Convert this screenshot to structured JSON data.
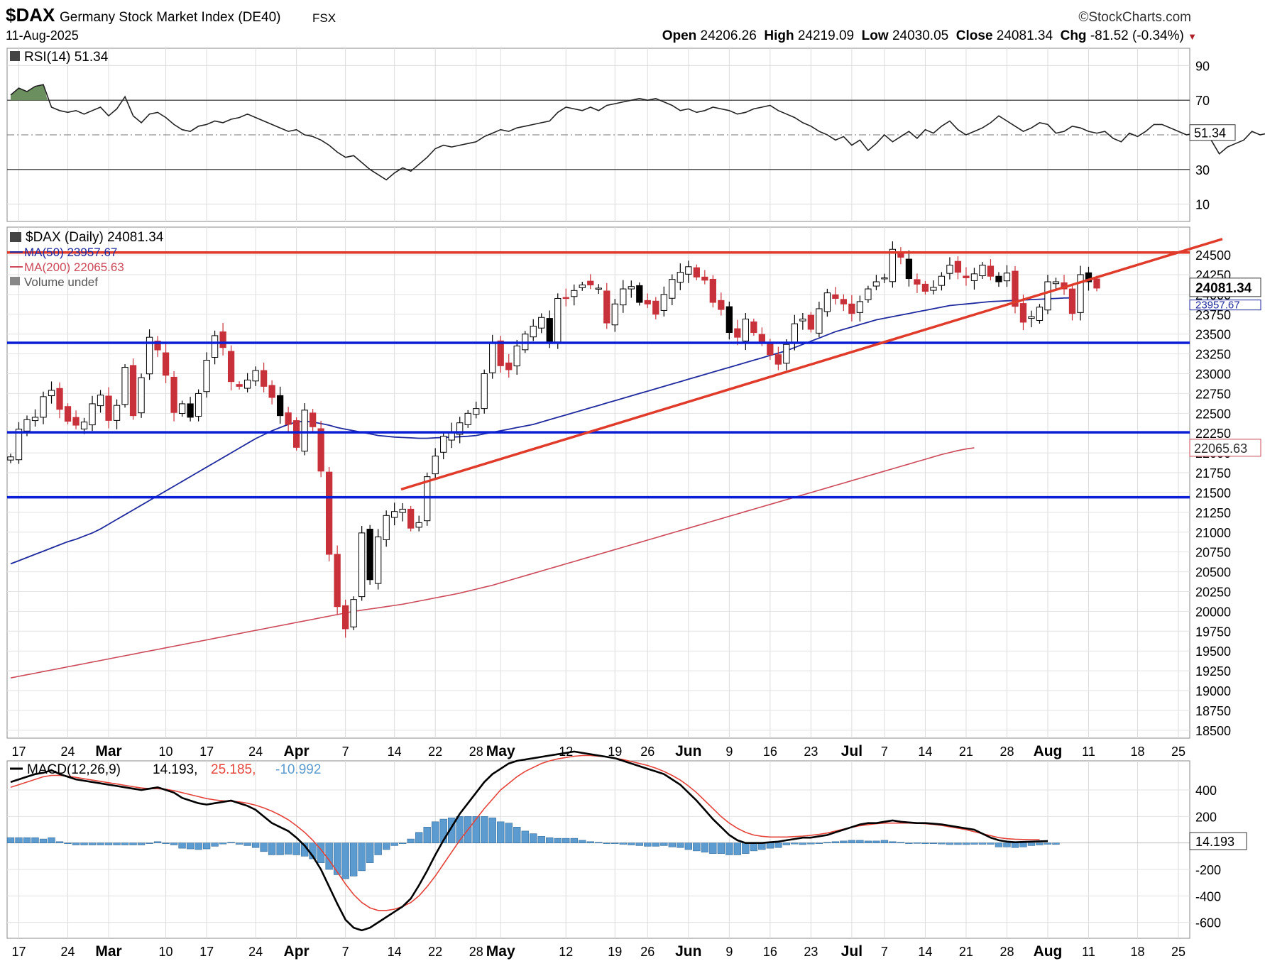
{
  "header": {
    "symbol": "$DAX",
    "name": "Germany Stock Market Index (DE40)",
    "exchange": "FSX",
    "date": "11-Aug-2025",
    "source": "©StockCharts.com",
    "open_label": "Open",
    "open": "24206.26",
    "high_label": "High",
    "high": "24219.09",
    "low_label": "Low",
    "low": "24030.05",
    "close_label": "Close",
    "close": "24081.34",
    "chg_label": "Chg",
    "chg": "-81.52 (-0.34%)",
    "chg_arrow": "▼"
  },
  "colors": {
    "up_candle": "#ffffff",
    "down_candle": "#c8303a",
    "black_candle": "#000000",
    "ma50": "#1f2a9e",
    "ma200": "#cc4a5a",
    "support_line": "#0a1ed6",
    "trend_line": "#e03a2a",
    "macd_line": "#000000",
    "signal_line": "#e4443a",
    "histogram": "#5b9bd0",
    "rsi_fill": "#6b8f5e"
  },
  "chart_data": [
    {
      "type": "line",
      "panel": "rsi",
      "label": "RSI(14) 51.34",
      "current_value_label": "51.34",
      "yticks": [
        "90",
        "70",
        "30",
        "10"
      ],
      "ylim": [
        0,
        100
      ],
      "reference_levels": [
        70,
        50,
        30
      ],
      "series": [
        {
          "name": "RSI(14)",
          "values": [
            73,
            77,
            75,
            78,
            79,
            66,
            64,
            63,
            64,
            62,
            64,
            66,
            61,
            65,
            72,
            61,
            57,
            62,
            63,
            60,
            56,
            53,
            52,
            55,
            56,
            58,
            57,
            59,
            60,
            62,
            60,
            58,
            56,
            54,
            52,
            53,
            50,
            49,
            47,
            44,
            40,
            37,
            38,
            34,
            30,
            27,
            24,
            28,
            31,
            29,
            33,
            37,
            42,
            44,
            43,
            44,
            45,
            46,
            49,
            51,
            53,
            52,
            54,
            55,
            56,
            57,
            58,
            63,
            66,
            65,
            64,
            66,
            64,
            67,
            68,
            69,
            70,
            71,
            70,
            71,
            69,
            67,
            64,
            65,
            63,
            64,
            66,
            65,
            64,
            62,
            63,
            65,
            66,
            67,
            64,
            62,
            60,
            57,
            55,
            52,
            50,
            47,
            49,
            44,
            47,
            41,
            45,
            50,
            46,
            49,
            52,
            48,
            53,
            51,
            55,
            58,
            53,
            50,
            52,
            54,
            57,
            61,
            58,
            55,
            52,
            54,
            57,
            56,
            51,
            52,
            55,
            54,
            52,
            51,
            52,
            48,
            46,
            51,
            49,
            52,
            56,
            56,
            54,
            52,
            50,
            51,
            49,
            47,
            39,
            43,
            45,
            47,
            52,
            50,
            51
          ]
        }
      ]
    },
    {
      "type": "candlestick",
      "panel": "price",
      "label": "$DAX (Daily) 24081.34",
      "legend": [
        "MA(50) 23957.67",
        "MA(200) 22065.63",
        "Volume undef"
      ],
      "current_price_label": "24081.34",
      "ma50_label_partial": "23957.67",
      "ma200_label": "22065.63",
      "yticks": [
        "24500",
        "24250",
        "24000",
        "23750",
        "23500",
        "23250",
        "23000",
        "22750",
        "22500",
        "22250",
        "22000",
        "21750",
        "21500",
        "21250",
        "21000",
        "20750",
        "20500",
        "20250",
        "20000",
        "19750",
        "19500",
        "19250",
        "19000",
        "18750",
        "18500"
      ],
      "ylim": [
        18400,
        24850
      ],
      "xticks": [
        "17",
        "24",
        "Mar",
        "10",
        "17",
        "24",
        "Apr",
        "7",
        "14",
        "22",
        "28",
        "May",
        "12",
        "19",
        "26",
        "Jun",
        "9",
        "16",
        "23",
        "Jul",
        "7",
        "14",
        "21",
        "28",
        "Aug",
        "11",
        "18",
        "25"
      ],
      "horizontal_levels": [
        24530,
        23390,
        22260,
        21440
      ],
      "trend_line": {
        "from": [
          "2025-04-22",
          21540
        ],
        "to": [
          "2025-08-28",
          24650
        ]
      },
      "close": [
        21950,
        22300,
        22420,
        22450,
        22710,
        22790,
        22550,
        22400,
        22350,
        22390,
        22620,
        22730,
        22410,
        22600,
        23080,
        22470,
        22950,
        23460,
        23300,
        22980,
        22510,
        22620,
        22450,
        22750,
        23170,
        23480,
        23330,
        22900,
        22840,
        22920,
        23040,
        22840,
        22700,
        22470,
        22360,
        22070,
        22540,
        22330,
        21770,
        20720,
        20060,
        19780,
        20150,
        20990,
        20400,
        20940,
        21210,
        21260,
        21290,
        21050,
        21120,
        21700,
        21960,
        22210,
        22270,
        22380,
        22500,
        22560,
        23000,
        23390,
        23100,
        23050,
        23350,
        23500,
        23600,
        23710,
        23400,
        23950,
        23950,
        24050,
        24120,
        24120,
        24080,
        23640,
        23880,
        24070,
        24100,
        23900,
        23880,
        23750,
        24000,
        24190,
        24280,
        24350,
        24220,
        24180,
        23900,
        23810,
        23520,
        23460,
        23690,
        23520,
        23400,
        23240,
        23120,
        23370,
        23630,
        23690,
        23560,
        23820,
        24020,
        23950,
        23880,
        23760,
        23910,
        24070,
        24160,
        24210,
        24570,
        24470,
        24200,
        24130,
        24040,
        24090,
        24230,
        24370,
        24280,
        24210,
        24260,
        24370,
        24230,
        24160,
        24270,
        23850,
        23650,
        23720,
        23840,
        24160,
        24160,
        24070,
        23760,
        24250,
        24160,
        24080
      ],
      "ma50": [
        20600,
        20640,
        20680,
        20720,
        20760,
        20800,
        20840,
        20880,
        20910,
        20950,
        20990,
        21040,
        21100,
        21160,
        21220,
        21280,
        21340,
        21400,
        21460,
        21520,
        21580,
        21640,
        21700,
        21760,
        21820,
        21880,
        21940,
        22000,
        22060,
        22120,
        22180,
        22230,
        22280,
        22320,
        22360,
        22390,
        22400,
        22390,
        22370,
        22350,
        22320,
        22300,
        22280,
        22260,
        22240,
        22220,
        22210,
        22200,
        22195,
        22190,
        22185,
        22185,
        22190,
        22195,
        22200,
        22205,
        22210,
        22220,
        22240,
        22260,
        22280,
        22300,
        22320,
        22340,
        22360,
        22390,
        22420,
        22450,
        22480,
        22510,
        22540,
        22570,
        22600,
        22630,
        22660,
        22690,
        22720,
        22750,
        22780,
        22810,
        22840,
        22870,
        22900,
        22930,
        22960,
        22990,
        23020,
        23050,
        23080,
        23110,
        23140,
        23170,
        23200,
        23230,
        23260,
        23290,
        23330,
        23370,
        23410,
        23450,
        23490,
        23530,
        23560,
        23590,
        23620,
        23650,
        23680,
        23700,
        23720,
        23740,
        23760,
        23780,
        23800,
        23820,
        23840,
        23860,
        23870,
        23880,
        23890,
        23900,
        23910,
        23915,
        23920,
        23925,
        23930,
        23935,
        23940,
        23945,
        23950,
        23955,
        23957
      ],
      "ma200": [
        19160,
        19180,
        19200,
        19220,
        19240,
        19260,
        19280,
        19300,
        19320,
        19340,
        19360,
        19380,
        19400,
        19420,
        19440,
        19460,
        19480,
        19500,
        19520,
        19540,
        19560,
        19580,
        19600,
        19620,
        19640,
        19660,
        19680,
        19700,
        19720,
        19740,
        19760,
        19780,
        19800,
        19820,
        19840,
        19860,
        19880,
        19900,
        19920,
        19940,
        19960,
        19980,
        20000,
        20015,
        20030,
        20045,
        20060,
        20075,
        20090,
        20110,
        20130,
        20150,
        20170,
        20190,
        20210,
        20230,
        20255,
        20280,
        20305,
        20330,
        20360,
        20390,
        20420,
        20450,
        20480,
        20510,
        20540,
        20570,
        20600,
        20630,
        20660,
        20690,
        20720,
        20750,
        20780,
        20810,
        20840,
        20870,
        20900,
        20930,
        20960,
        20990,
        21020,
        21050,
        21080,
        21110,
        21140,
        21170,
        21200,
        21230,
        21260,
        21290,
        21320,
        21350,
        21380,
        21410,
        21440,
        21470,
        21500,
        21530,
        21560,
        21590,
        21620,
        21650,
        21680,
        21710,
        21740,
        21770,
        21800,
        21830,
        21860,
        21890,
        21920,
        21950,
        21980,
        22005,
        22030,
        22050,
        22065
      ]
    },
    {
      "type": "line",
      "panel": "macd",
      "label": "MACD(12,26,9)",
      "macd_value": "14.193",
      "signal_value": "25.185",
      "hist_value": "-10.992",
      "current_value_label": "14.193",
      "yticks": [
        "400",
        "200",
        "0",
        "-200",
        "-400",
        "-600"
      ],
      "ylim": [
        -720,
        620
      ],
      "series": [
        {
          "name": "MACD",
          "values": [
            460,
            480,
            500,
            520,
            530,
            550,
            520,
            500,
            480,
            470,
            460,
            450,
            440,
            430,
            420,
            410,
            400,
            410,
            420,
            400,
            380,
            340,
            320,
            300,
            290,
            300,
            310,
            320,
            300,
            280,
            250,
            200,
            150,
            120,
            90,
            40,
            -20,
            -100,
            -200,
            -330,
            -460,
            -580,
            -640,
            -660,
            -640,
            -600,
            -560,
            -520,
            -480,
            -420,
            -320,
            -210,
            -90,
            20,
            120,
            220,
            300,
            380,
            460,
            520,
            560,
            600,
            620,
            630,
            640,
            650,
            660,
            670,
            680,
            690,
            680,
            670,
            660,
            650,
            640,
            620,
            600,
            580,
            560,
            540,
            520,
            480,
            440,
            380,
            320,
            250,
            180,
            120,
            60,
            20,
            0,
            0,
            0,
            5,
            10,
            20,
            30,
            40,
            40,
            50,
            60,
            80,
            100,
            120,
            140,
            150,
            150,
            160,
            170,
            160,
            155,
            150,
            150,
            145,
            140,
            130,
            120,
            110,
            100,
            70,
            40,
            20,
            10,
            5,
            8,
            10,
            12,
            14
          ]
        },
        {
          "name": "Signal",
          "values": [
            420,
            440,
            460,
            480,
            500,
            510,
            510,
            505,
            495,
            485,
            475,
            465,
            455,
            445,
            435,
            425,
            415,
            410,
            410,
            405,
            395,
            380,
            365,
            350,
            335,
            325,
            318,
            315,
            310,
            300,
            285,
            265,
            240,
            210,
            175,
            130,
            80,
            20,
            -50,
            -130,
            -220,
            -310,
            -390,
            -450,
            -490,
            -510,
            -510,
            -500,
            -480,
            -450,
            -400,
            -330,
            -250,
            -160,
            -70,
            20,
            100,
            180,
            260,
            330,
            400,
            450,
            500,
            540,
            570,
            600,
            620,
            635,
            645,
            655,
            660,
            660,
            655,
            650,
            640,
            630,
            615,
            600,
            585,
            565,
            540,
            510,
            475,
            430,
            380,
            320,
            260,
            200,
            150,
            110,
            80,
            60,
            50,
            45,
            45,
            45,
            48,
            52,
            58,
            65,
            75,
            90,
            105,
            118,
            130,
            138,
            145,
            150,
            150,
            150,
            150,
            148,
            145,
            140,
            132,
            122,
            112,
            100,
            85,
            70,
            55,
            40,
            32,
            28,
            26,
            25,
            25
          ]
        },
        {
          "name": "Histogram",
          "values": [
            40,
            40,
            40,
            40,
            30,
            40,
            10,
            -5,
            -15,
            -15,
            -15,
            -15,
            -15,
            -15,
            -15,
            -15,
            -15,
            0,
            10,
            -5,
            -15,
            -40,
            -45,
            -50,
            -45,
            -25,
            -8,
            5,
            -10,
            -20,
            -35,
            -65,
            -90,
            -90,
            -85,
            -90,
            -100,
            -120,
            -150,
            -200,
            -240,
            -270,
            -250,
            -210,
            -150,
            -90,
            -50,
            -20,
            0,
            30,
            80,
            120,
            160,
            180,
            190,
            200,
            200,
            200,
            200,
            190,
            160,
            150,
            120,
            90,
            70,
            50,
            40,
            35,
            35,
            35,
            20,
            10,
            5,
            0,
            0,
            -10,
            -15,
            -20,
            -25,
            -25,
            -20,
            -30,
            -35,
            -50,
            -60,
            -70,
            -80,
            -80,
            -90,
            -90,
            -80,
            -60,
            -50,
            -40,
            -35,
            -15,
            -8,
            -12,
            -8,
            -5,
            5,
            10,
            15,
            20,
            20,
            15,
            15,
            20,
            10,
            5,
            0,
            2,
            0,
            -5,
            -8,
            -12,
            -12,
            -12,
            -10,
            -10,
            -10,
            -30,
            -30,
            -35,
            -30,
            -20,
            -15,
            -10,
            -11
          ]
        }
      ]
    }
  ]
}
